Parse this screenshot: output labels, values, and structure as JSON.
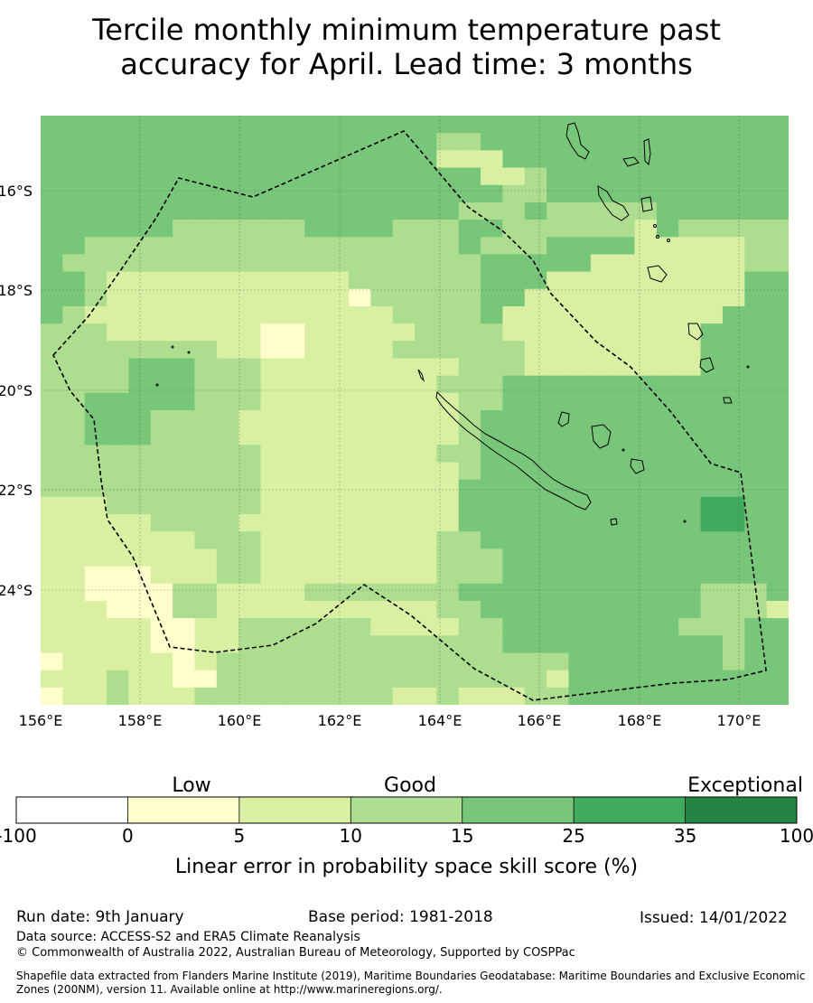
{
  "title": {
    "line1": "Tercile monthly minimum temperature past",
    "line2": "accuracy for April. Lead time: 3 months"
  },
  "map": {
    "lon_labels": [
      "156°E",
      "158°E",
      "160°E",
      "162°E",
      "164°E",
      "166°E",
      "168°E",
      "170°E"
    ],
    "lat_labels": [
      "16°S",
      "18°S",
      "20°S",
      "22°S",
      "24°S"
    ],
    "grid_categories": [
      "4444444444444444444444444444444444",
      "4444444444444444443344444444444444",
      "4444444444444444442224444444444444",
      "4444444444444444444422344444444444",
      "4444444444444444444443344444444444",
      "4444444444444444444333433333444444",
      "4444443333334444333443333332433333",
      "4433333333333333333433344442222233",
      "4333333333333333333344444222222233",
      "4432222222222233333344422222222244",
      "4432222222222213333344222222222244",
      "4322222222222222333342222222222444",
      "3332222222112222233332222222224444",
      "3333333322112222333333222222224444",
      "3333444333222222222333222222224444",
      "3333444333222222223334444444444444",
      "3344444333222222222334444444444444",
      "3344433332222222222344444444444444",
      "3344433332222222222344444444444444",
      "3333333333222222223344444444444444",
      "3333333333222222222344444444444444",
      "3333333333222222222444444444444444",
      "2223333333222222222444444444445544",
      "2222233332222222222444444444445544",
      "2222222333222222223344444444444444",
      "2222222233222222223334444444444444",
      "2211122233222222223334444444444444",
      "2211113322223333333444444444443334",
      "2221113322222222223344444444443332",
      "2222211223333332222334444444433344",
      "2222211223333333333334444444444344",
      "1222221233333333333333334444444344",
      "2223221133333333333333324444444444",
      "1223222333333333223222334444444444"
    ]
  },
  "legend": {
    "labels": [
      "Low",
      "Good",
      "Exceptional"
    ],
    "ticks": [
      "-100",
      "0",
      "5",
      "10",
      "15",
      "25",
      "35",
      "100"
    ],
    "colors": [
      "#ffffff",
      "#ffffcc",
      "#d9f0a3",
      "#addd8e",
      "#78c679",
      "#41ab5d",
      "#238443"
    ],
    "axis_title": "Linear error in probability space skill score (%)"
  },
  "footer": {
    "run_date": "Run date: 9th January",
    "base_period": "Base period: 1981-2018",
    "issued": "Issued: 14/01/2022",
    "data_source": "Data source: ACCESS-S2 and ERA5 Climate Reanalysis",
    "copyright": "© Commonwealth of Australia 2022, Australian Bureau of Meteorology, Supported by COSPPac",
    "shapefile_line1": "Shapefile data extracted from Flanders Marine Institute (2019), Maritime Boundaries Geodatabase: Maritime Boundaries and Exclusive Economic",
    "shapefile_line2": "Zones (200NM), version 11. Available online at http://www.marineregions.org/."
  }
}
